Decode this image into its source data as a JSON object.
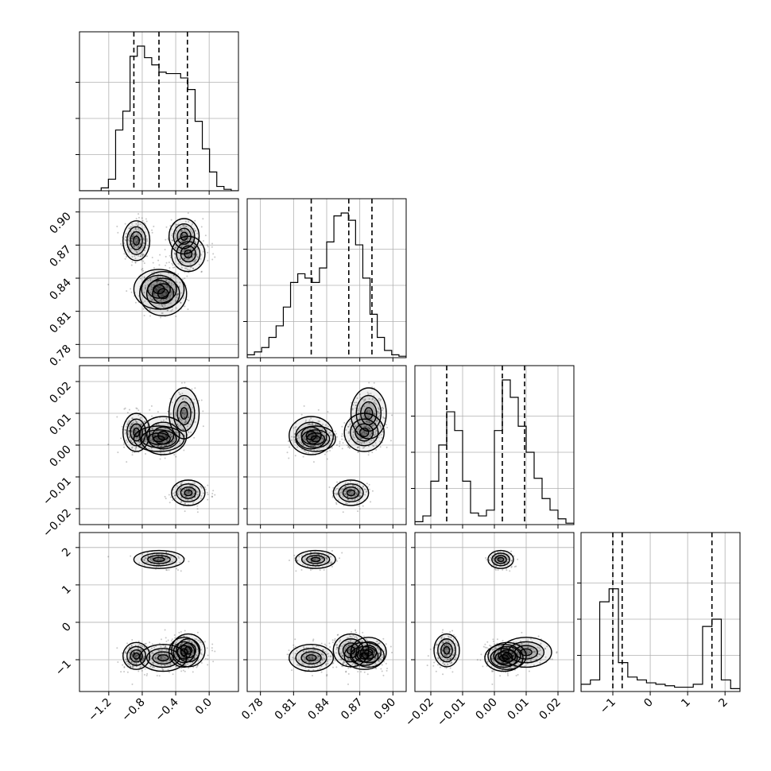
{
  "chart_data": {
    "type": "scatter",
    "variant": "corner-plot",
    "grid": true,
    "colors": {
      "points": "#000000",
      "hist_line": "#000000",
      "grid": "#b0b0b0",
      "frame": "#000000"
    },
    "params": [
      {
        "range": [
          -1.55,
          0.35
        ],
        "ticks": [
          -1.2,
          -0.8,
          -0.4,
          0.0
        ],
        "tick_labels": [
          "−1.2",
          "−0.8",
          "−0.4",
          "0.0"
        ],
        "quantiles": [
          -0.9,
          -0.6,
          -0.26
        ],
        "modes": [
          {
            "mu": -0.85,
            "sd": 0.1,
            "w": 0.5
          },
          {
            "mu": -0.3,
            "sd": 0.14,
            "w": 0.5
          }
        ],
        "hist": [
          0,
          0,
          0,
          0.02,
          0.08,
          0.42,
          0.55,
          0.93,
          1.0,
          0.92,
          0.87,
          0.82,
          0.81,
          0.81,
          0.78,
          0.7,
          0.48,
          0.29,
          0.13,
          0.03,
          0.01,
          0
        ]
      },
      {
        "range": [
          0.768,
          0.912
        ],
        "ticks": [
          0.78,
          0.81,
          0.84,
          0.87,
          0.9
        ],
        "tick_labels": [
          "0.78",
          "0.81",
          "0.84",
          "0.87",
          "0.90"
        ],
        "quantiles": [
          0.826,
          0.86,
          0.881
        ],
        "modes": [
          {
            "mu": 0.826,
            "sd": 0.01,
            "w": 0.3
          },
          {
            "mu": 0.875,
            "sd": 0.009,
            "w": 0.7
          }
        ],
        "hist": [
          0.02,
          0.04,
          0.07,
          0.14,
          0.22,
          0.35,
          0.52,
          0.58,
          0.55,
          0.52,
          0.62,
          0.8,
          0.98,
          1.0,
          0.95,
          0.78,
          0.55,
          0.3,
          0.14,
          0.05,
          0.02,
          0.01
        ]
      },
      {
        "range": [
          -0.025,
          0.025
        ],
        "ticks": [
          -0.02,
          -0.01,
          0.0,
          0.01,
          0.02
        ],
        "tick_labels": [
          "−0.02",
          "−0.01",
          "0.00",
          "0.01",
          "0.02"
        ],
        "quantiles": [
          -0.015,
          0.0025,
          0.0095
        ],
        "modes": [
          {
            "mu": -0.015,
            "sd": 0.002,
            "w": 0.3
          },
          {
            "mu": 0.006,
            "sd": 0.0055,
            "w": 0.7
          }
        ],
        "hist": [
          0.02,
          0.06,
          0.3,
          0.55,
          0.78,
          0.65,
          0.3,
          0.08,
          0.06,
          0.1,
          0.65,
          1.0,
          0.88,
          0.68,
          0.5,
          0.32,
          0.18,
          0.1,
          0.04,
          0.01
        ]
      },
      {
        "range": [
          -1.85,
          2.4
        ],
        "ticks": [
          -1,
          0,
          1,
          2
        ],
        "tick_labels": [
          "−1",
          "0",
          "1",
          "2"
        ],
        "quantiles": [
          -1.0,
          -0.75,
          1.65
        ],
        "modes": [
          {
            "mu": -0.82,
            "sd": 0.28,
            "w": 0.7
          },
          {
            "mu": 1.65,
            "sd": 0.18,
            "w": 0.3
          }
        ],
        "hist": [
          0.05,
          0.08,
          0.62,
          0.71,
          0.2,
          0.1,
          0.08,
          0.06,
          0.05,
          0.04,
          0.03,
          0.03,
          0.05,
          0.45,
          0.5,
          0.08,
          0.02
        ]
      }
    ],
    "clusters": [
      {
        "w": 0.28,
        "mean": [
          -0.87,
          0.874,
          0.004,
          -0.9
        ],
        "sd": [
          0.08,
          0.009,
          0.003,
          0.18
        ]
      },
      {
        "w": 0.22,
        "mean": [
          -0.55,
          0.826,
          0.003,
          -0.95
        ],
        "sd": [
          0.14,
          0.01,
          0.003,
          0.18
        ]
      },
      {
        "w": 0.2,
        "mean": [
          -0.25,
          0.862,
          -0.015,
          -0.75
        ],
        "sd": [
          0.1,
          0.008,
          0.002,
          0.22
        ]
      },
      {
        "w": 0.15,
        "mean": [
          -0.6,
          0.83,
          0.002,
          1.68
        ],
        "sd": [
          0.15,
          0.009,
          0.002,
          0.12
        ]
      },
      {
        "w": 0.15,
        "mean": [
          -0.3,
          0.878,
          0.01,
          -0.8
        ],
        "sd": [
          0.09,
          0.008,
          0.004,
          0.2
        ]
      }
    ],
    "n_points": 900
  }
}
